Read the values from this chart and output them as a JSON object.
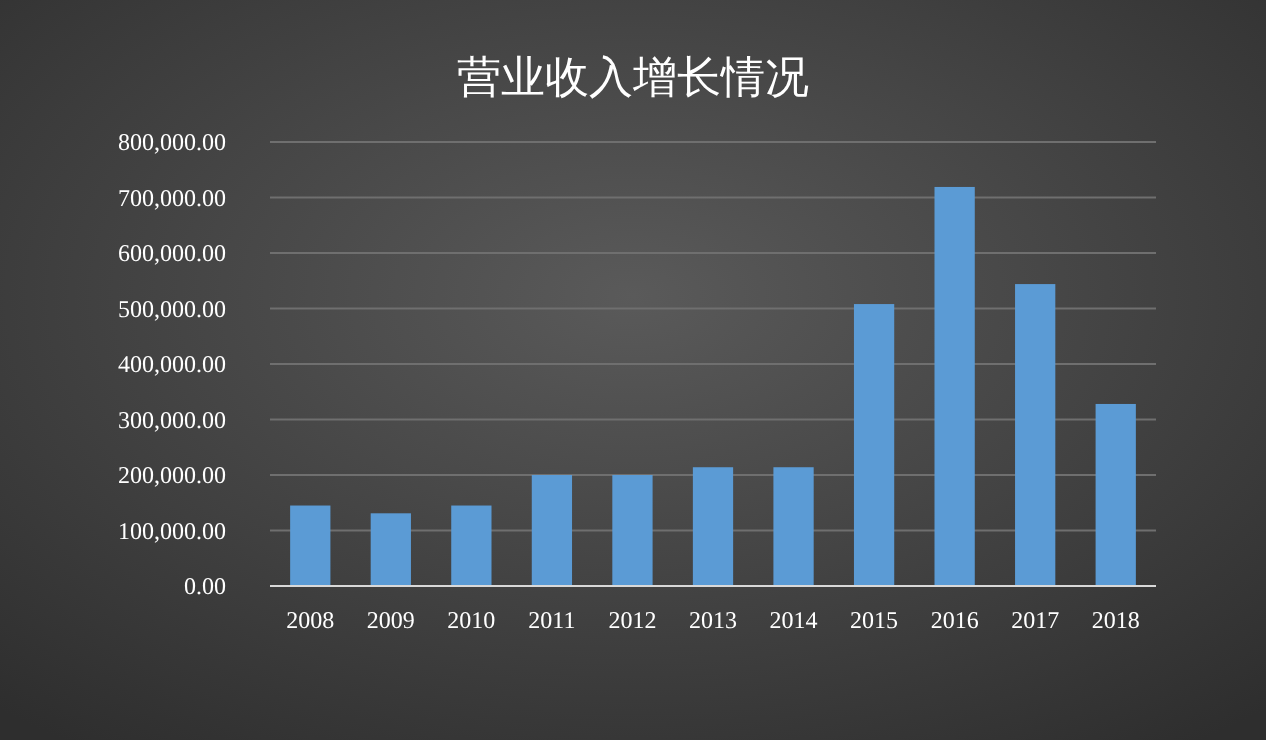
{
  "chart_data": {
    "type": "bar",
    "title": "营业收入增长情况",
    "categories": [
      "2008",
      "2009",
      "2010",
      "2011",
      "2012",
      "2013",
      "2014",
      "2015",
      "2016",
      "2017",
      "2018"
    ],
    "values": [
      145000,
      131000,
      145000,
      200000,
      200000,
      214000,
      214000,
      508000,
      719000,
      544000,
      328000
    ],
    "color": "#5b9bd5",
    "ylim": [
      0,
      800000
    ],
    "yticks": [
      {
        "value": 0,
        "label": "0.00"
      },
      {
        "value": 100000,
        "label": "100,000.00"
      },
      {
        "value": 200000,
        "label": "200,000.00"
      },
      {
        "value": 300000,
        "label": "300,000.00"
      },
      {
        "value": 400000,
        "label": "400,000.00"
      },
      {
        "value": 500000,
        "label": "500,000.00"
      },
      {
        "value": 600000,
        "label": "600,000.00"
      },
      {
        "value": 700000,
        "label": "700,000.00"
      },
      {
        "value": 800000,
        "label": "800,000.00"
      }
    ],
    "grid": "y"
  }
}
